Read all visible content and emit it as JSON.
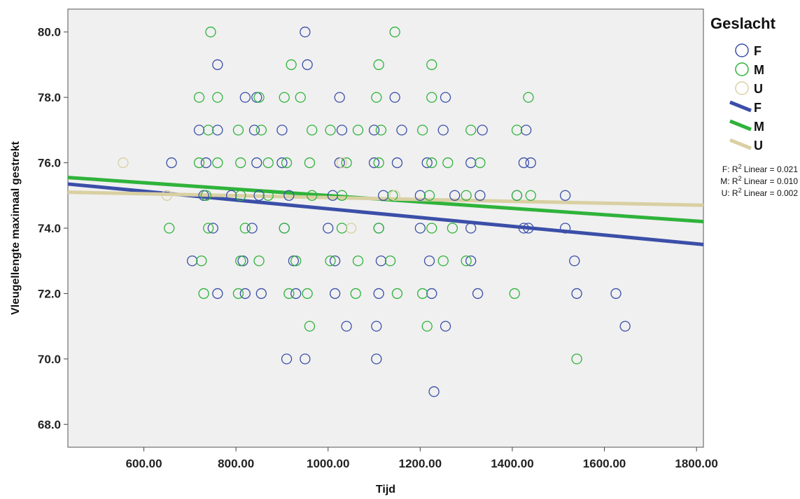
{
  "chart_data": {
    "type": "scatter",
    "xlabel": "Tijd",
    "ylabel": "Vleugellengte maximaal gestrekt",
    "xlim": [
      435,
      1815
    ],
    "ylim": [
      67.3,
      80.7
    ],
    "xticks": [
      600,
      800,
      1000,
      1200,
      1400,
      1600,
      1800
    ],
    "xtick_labels": [
      "600.00",
      "800.00",
      "1000.00",
      "1200.00",
      "1400.00",
      "1600.00",
      "1800.00"
    ],
    "yticks": [
      68,
      70,
      72,
      74,
      76,
      78,
      80
    ],
    "ytick_labels": [
      "68.0",
      "70.0",
      "72.0",
      "74.0",
      "76.0",
      "78.0",
      "80.0"
    ],
    "grid": false,
    "legend_placement": "right",
    "legend_title": "Geslacht",
    "series": [
      {
        "name": "F",
        "color": "#3b4fa8",
        "points": [
          [
            950,
            80
          ],
          [
            760,
            79
          ],
          [
            955,
            79
          ],
          [
            820,
            78
          ],
          [
            845,
            78
          ],
          [
            1025,
            78
          ],
          [
            1145,
            78
          ],
          [
            1255,
            78
          ],
          [
            720,
            77
          ],
          [
            760,
            77
          ],
          [
            840,
            77
          ],
          [
            900,
            77
          ],
          [
            1030,
            77
          ],
          [
            1100,
            77
          ],
          [
            1160,
            77
          ],
          [
            1250,
            77
          ],
          [
            1335,
            77
          ],
          [
            1430,
            77
          ],
          [
            660,
            76
          ],
          [
            735,
            76
          ],
          [
            845,
            76
          ],
          [
            900,
            76
          ],
          [
            1025,
            76
          ],
          [
            1100,
            76
          ],
          [
            1150,
            76
          ],
          [
            1215,
            76
          ],
          [
            1310,
            76
          ],
          [
            1425,
            76
          ],
          [
            1440,
            76
          ],
          [
            730,
            75
          ],
          [
            790,
            75
          ],
          [
            850,
            75
          ],
          [
            915,
            75
          ],
          [
            1010,
            75
          ],
          [
            1120,
            75
          ],
          [
            1200,
            75
          ],
          [
            1275,
            75
          ],
          [
            1330,
            75
          ],
          [
            1410,
            75
          ],
          [
            1515,
            75
          ],
          [
            750,
            74
          ],
          [
            835,
            74
          ],
          [
            905,
            74
          ],
          [
            1000,
            74
          ],
          [
            1110,
            74
          ],
          [
            1200,
            74
          ],
          [
            1310,
            74
          ],
          [
            1425,
            74
          ],
          [
            1435,
            74
          ],
          [
            1515,
            74
          ],
          [
            705,
            73
          ],
          [
            815,
            73
          ],
          [
            925,
            73
          ],
          [
            1015,
            73
          ],
          [
            1115,
            73
          ],
          [
            1220,
            73
          ],
          [
            1310,
            73
          ],
          [
            1535,
            73
          ],
          [
            760,
            72
          ],
          [
            820,
            72
          ],
          [
            855,
            72
          ],
          [
            930,
            72
          ],
          [
            1015,
            72
          ],
          [
            1110,
            72
          ],
          [
            1225,
            72
          ],
          [
            1325,
            72
          ],
          [
            1540,
            72
          ],
          [
            1625,
            72
          ],
          [
            1040,
            71
          ],
          [
            1105,
            71
          ],
          [
            1255,
            71
          ],
          [
            1645,
            71
          ],
          [
            910,
            70
          ],
          [
            950,
            70
          ],
          [
            1105,
            70
          ],
          [
            1230,
            69
          ]
        ]
      },
      {
        "name": "M",
        "color": "#2fb33b",
        "points": [
          [
            745,
            80
          ],
          [
            1145,
            80
          ],
          [
            920,
            79
          ],
          [
            1110,
            79
          ],
          [
            1225,
            79
          ],
          [
            720,
            78
          ],
          [
            760,
            78
          ],
          [
            850,
            78
          ],
          [
            905,
            78
          ],
          [
            940,
            78
          ],
          [
            1105,
            78
          ],
          [
            1225,
            78
          ],
          [
            1435,
            78
          ],
          [
            740,
            77
          ],
          [
            805,
            77
          ],
          [
            855,
            77
          ],
          [
            965,
            77
          ],
          [
            1005,
            77
          ],
          [
            1065,
            77
          ],
          [
            1115,
            77
          ],
          [
            1205,
            77
          ],
          [
            1310,
            77
          ],
          [
            1410,
            77
          ],
          [
            720,
            76
          ],
          [
            760,
            76
          ],
          [
            810,
            76
          ],
          [
            870,
            76
          ],
          [
            910,
            76
          ],
          [
            960,
            76
          ],
          [
            1040,
            76
          ],
          [
            1110,
            76
          ],
          [
            1225,
            76
          ],
          [
            1260,
            76
          ],
          [
            1330,
            76
          ],
          [
            735,
            75
          ],
          [
            810,
            75
          ],
          [
            870,
            75
          ],
          [
            965,
            75
          ],
          [
            1030,
            75
          ],
          [
            1140,
            75
          ],
          [
            1220,
            75
          ],
          [
            1300,
            75
          ],
          [
            1410,
            75
          ],
          [
            1440,
            75
          ],
          [
            655,
            74
          ],
          [
            740,
            74
          ],
          [
            820,
            74
          ],
          [
            905,
            74
          ],
          [
            1030,
            74
          ],
          [
            1110,
            74
          ],
          [
            1225,
            74
          ],
          [
            1270,
            74
          ],
          [
            725,
            73
          ],
          [
            810,
            73
          ],
          [
            850,
            73
          ],
          [
            930,
            73
          ],
          [
            1005,
            73
          ],
          [
            1065,
            73
          ],
          [
            1135,
            73
          ],
          [
            1250,
            73
          ],
          [
            1300,
            73
          ],
          [
            730,
            72
          ],
          [
            805,
            72
          ],
          [
            915,
            72
          ],
          [
            955,
            72
          ],
          [
            1060,
            72
          ],
          [
            1150,
            72
          ],
          [
            1205,
            72
          ],
          [
            1405,
            72
          ],
          [
            960,
            71
          ],
          [
            1215,
            71
          ],
          [
            1540,
            70
          ]
        ]
      },
      {
        "name": "U",
        "color": "#d9d0a3",
        "points": [
          [
            555,
            76
          ],
          [
            650,
            75
          ],
          [
            1030,
            76
          ],
          [
            1145,
            75
          ],
          [
            1050,
            74
          ]
        ]
      }
    ],
    "fit_lines": [
      {
        "name": "F",
        "color": "#3b4fa8",
        "x": [
          435,
          1815
        ],
        "y": [
          75.35,
          73.5
        ]
      },
      {
        "name": "M",
        "color": "#2fb33b",
        "x": [
          435,
          1815
        ],
        "y": [
          75.55,
          74.2
        ]
      },
      {
        "name": "U",
        "color": "#d9d0a3",
        "x": [
          435,
          1815
        ],
        "y": [
          75.1,
          74.7
        ]
      }
    ],
    "fit_labels": [
      {
        "pre": "F: R",
        "sup": "2",
        "post": " Linear = 0.021"
      },
      {
        "pre": "M: R",
        "sup": "2",
        "post": " Linear = 0.010"
      },
      {
        "pre": "U: R",
        "sup": "2",
        "post": " Linear = 0.002"
      }
    ]
  }
}
